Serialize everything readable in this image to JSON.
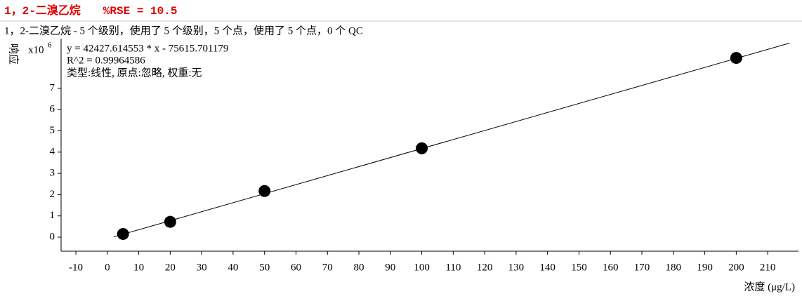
{
  "header": "1，2-二溴乙烷　　%RSE = 10.5",
  "chart_data": {
    "type": "scatter",
    "title": "1，2-二溴乙烷 - 5 个级别，使用了 5 个级别，5 个点，使用了 5 个点，0 个 QC",
    "y_label": "响应",
    "y_multiplier": {
      "base": "x10",
      "exponent": "6"
    },
    "x_label": "浓度 (μg/L)",
    "annotations": [
      "y = 42427.614553 * x  - 75615.701179",
      "R^2 = 0.99964586",
      "类型:线性, 原点:忽略, 权重:无"
    ],
    "x": [
      5,
      20,
      50,
      100,
      200
    ],
    "values": [
      0.15,
      0.72,
      2.17,
      4.18,
      8.43
    ],
    "color": "#000000",
    "fit_line": {
      "x": [
        2,
        217
      ],
      "values": [
        0.01,
        9.13
      ]
    },
    "xlim": [
      -14.7,
      219.8
    ],
    "ylim": [
      -0.66,
      9.34
    ],
    "xticks": [
      -10,
      0,
      10,
      20,
      30,
      40,
      50,
      60,
      70,
      80,
      90,
      100,
      110,
      120,
      130,
      140,
      150,
      160,
      170,
      180,
      190,
      200,
      210
    ],
    "yticks": [
      0,
      1,
      2,
      3,
      4,
      5,
      6,
      7
    ]
  }
}
